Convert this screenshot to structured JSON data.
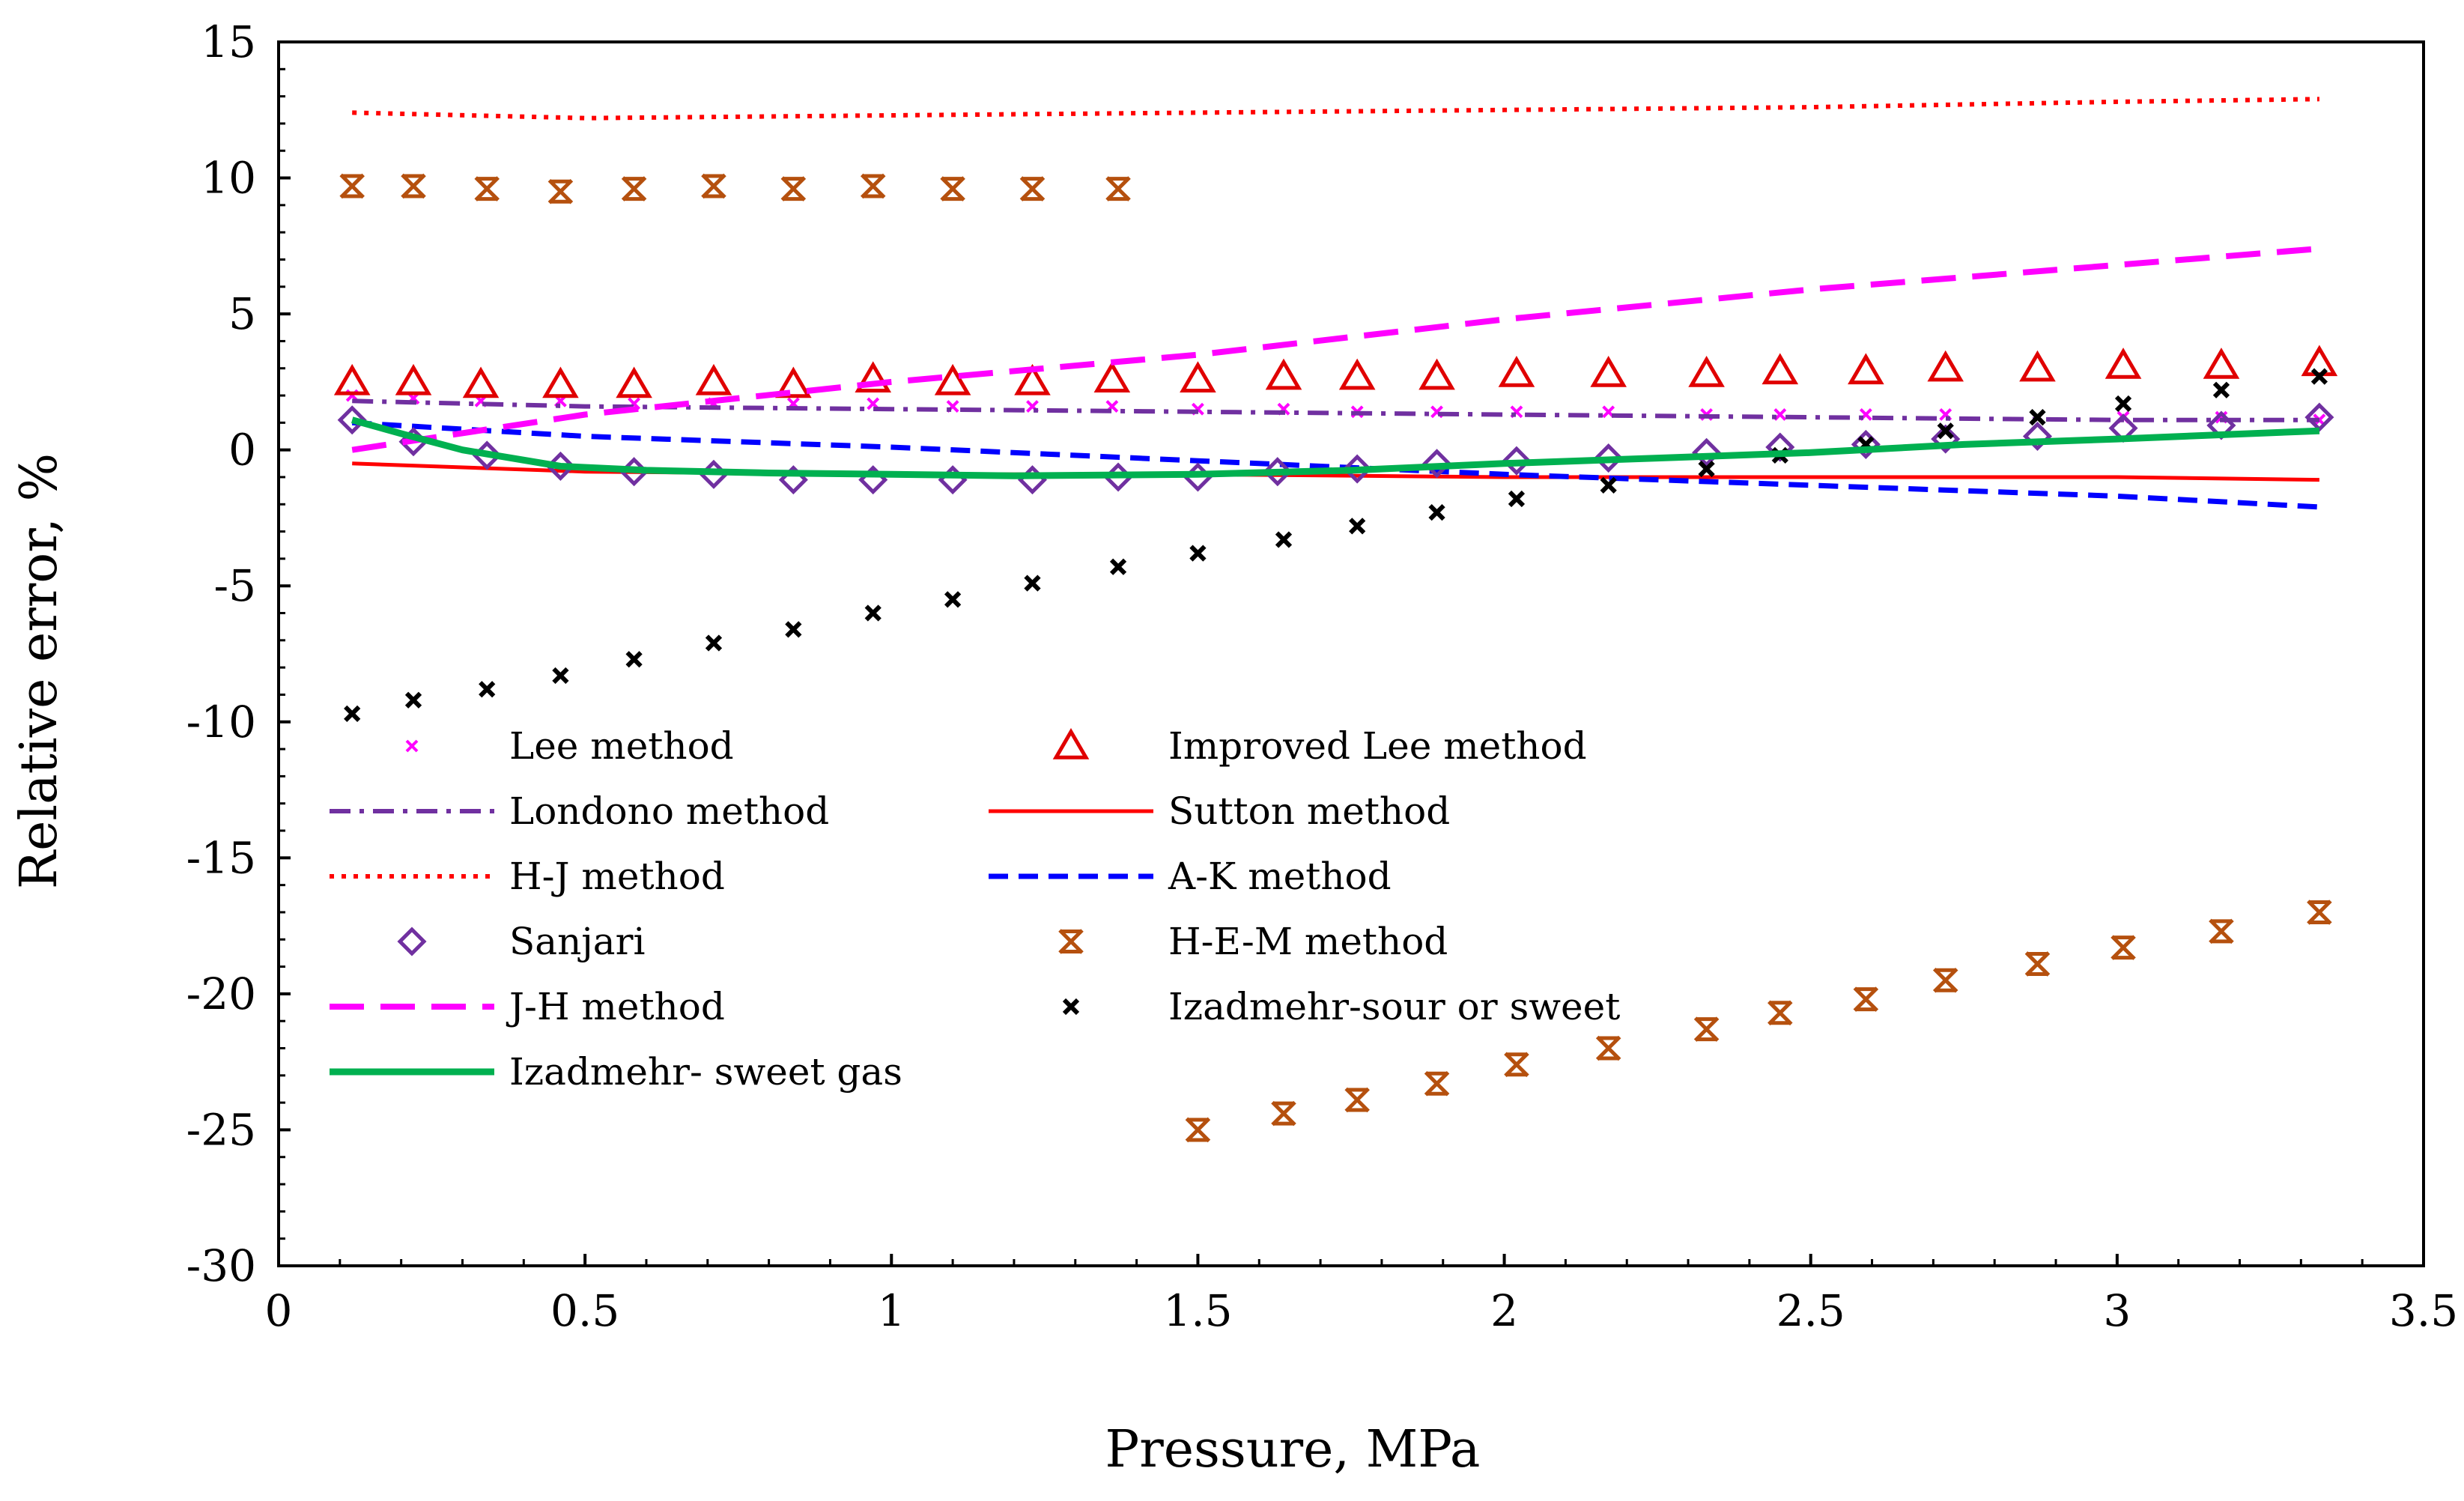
{
  "chart_data": {
    "type": "line",
    "title": "",
    "xlabel": "Pressure, MPa",
    "ylabel": "Relative error, %",
    "xlim": [
      0,
      3.5
    ],
    "ylim": [
      -30,
      15
    ],
    "xticks": [
      0,
      0.5,
      1,
      1.5,
      2,
      2.5,
      3,
      3.5
    ],
    "xtick_labels": [
      "0",
      "0.5",
      "1",
      "1.5",
      "2",
      "2.5",
      "3",
      "3.5"
    ],
    "yticks": [
      15,
      10,
      5,
      0,
      -5,
      -10,
      -15,
      -20,
      -25,
      -30
    ],
    "ytick_labels": [
      "15",
      "10",
      "5",
      "0",
      "-5",
      "-10",
      "-15",
      "-20",
      "-25",
      "-30"
    ],
    "grid": false,
    "legend_position": "lower-left, two columns",
    "series": [
      {
        "key": "lee",
        "name": "Lee method",
        "style": "marker",
        "marker": "x",
        "color": "#ff00ff",
        "x": [
          0.12,
          0.22,
          0.33,
          0.46,
          0.58,
          0.71,
          0.84,
          0.97,
          1.1,
          1.23,
          1.36,
          1.5,
          1.64,
          1.76,
          1.89,
          2.02,
          2.17,
          2.33,
          2.45,
          2.59,
          2.72,
          2.87,
          3.01,
          3.17,
          3.33
        ],
        "y": [
          2.0,
          1.9,
          1.8,
          1.8,
          1.7,
          1.7,
          1.7,
          1.7,
          1.6,
          1.6,
          1.6,
          1.5,
          1.5,
          1.4,
          1.4,
          1.4,
          1.4,
          1.3,
          1.3,
          1.3,
          1.3,
          1.2,
          1.2,
          1.2,
          1.1
        ]
      },
      {
        "key": "improved_lee",
        "name": "Improved Lee method",
        "style": "marker",
        "marker": "triangle",
        "color": "#e00000",
        "x": [
          0.12,
          0.22,
          0.33,
          0.46,
          0.58,
          0.71,
          0.84,
          0.97,
          1.1,
          1.23,
          1.36,
          1.5,
          1.64,
          1.76,
          1.89,
          2.02,
          2.17,
          2.33,
          2.45,
          2.59,
          2.72,
          2.87,
          3.01,
          3.17,
          3.33
        ],
        "y": [
          2.5,
          2.5,
          2.4,
          2.4,
          2.4,
          2.5,
          2.4,
          2.6,
          2.5,
          2.5,
          2.6,
          2.6,
          2.7,
          2.7,
          2.7,
          2.8,
          2.8,
          2.8,
          2.9,
          2.9,
          3.0,
          3.0,
          3.1,
          3.1,
          3.2
        ]
      },
      {
        "key": "londono",
        "name": "Londono method",
        "style": "dashdot",
        "color": "#7030a0",
        "x": [
          0.12,
          0.5,
          1.0,
          1.5,
          2.0,
          2.5,
          3.0,
          3.33
        ],
        "y": [
          1.8,
          1.6,
          1.5,
          1.4,
          1.3,
          1.2,
          1.1,
          1.1
        ]
      },
      {
        "key": "sutton",
        "name": "Sutton method",
        "style": "solid",
        "color": "#ff0000",
        "x": [
          0.12,
          0.5,
          1.0,
          1.5,
          2.0,
          2.5,
          3.0,
          3.33
        ],
        "y": [
          -0.5,
          -0.8,
          -0.9,
          -0.9,
          -1.0,
          -1.0,
          -1.0,
          -1.1
        ]
      },
      {
        "key": "hj",
        "name": "H-J method",
        "style": "dotted",
        "color": "#ff0000",
        "x": [
          0.12,
          0.5,
          1.0,
          1.5,
          2.0,
          2.5,
          3.0,
          3.33
        ],
        "y": [
          12.4,
          12.2,
          12.3,
          12.4,
          12.5,
          12.6,
          12.8,
          12.9
        ]
      },
      {
        "key": "ak",
        "name": "A-K method",
        "style": "dashed",
        "color": "#0000ff",
        "x": [
          0.12,
          0.5,
          1.0,
          1.5,
          2.0,
          2.5,
          3.0,
          3.33
        ],
        "y": [
          1.0,
          0.5,
          0.1,
          -0.4,
          -0.9,
          -1.3,
          -1.7,
          -2.1
        ]
      },
      {
        "key": "sanjari",
        "name": "Sanjari",
        "style": "marker",
        "marker": "diamond",
        "color": "#7030a0",
        "x": [
          0.12,
          0.22,
          0.34,
          0.46,
          0.58,
          0.71,
          0.84,
          0.97,
          1.1,
          1.23,
          1.37,
          1.5,
          1.63,
          1.76,
          1.89,
          2.02,
          2.17,
          2.33,
          2.45,
          2.59,
          2.72,
          2.87,
          3.01,
          3.17,
          3.33
        ],
        "y": [
          1.1,
          0.3,
          -0.2,
          -0.6,
          -0.8,
          -0.9,
          -1.1,
          -1.1,
          -1.1,
          -1.1,
          -1.0,
          -1.0,
          -0.8,
          -0.7,
          -0.5,
          -0.4,
          -0.3,
          -0.1,
          0.1,
          0.2,
          0.4,
          0.5,
          0.8,
          0.9,
          1.2
        ]
      },
      {
        "key": "hem",
        "name": "H-E-M method",
        "style": "marker",
        "marker": "asterisk",
        "color": "#b5500e",
        "x": [
          0.12,
          0.22,
          0.34,
          0.46,
          0.58,
          0.71,
          0.84,
          0.97,
          1.1,
          1.23,
          1.37,
          1.5,
          1.64,
          1.76,
          1.89,
          2.02,
          2.17,
          2.33,
          2.45,
          2.59,
          2.72,
          2.87,
          3.01,
          3.17,
          3.33
        ],
        "y": [
          9.7,
          9.7,
          9.6,
          9.5,
          9.6,
          9.7,
          9.6,
          9.7,
          9.6,
          9.6,
          9.6,
          -25.0,
          -24.4,
          -23.9,
          -23.3,
          -22.6,
          -22.0,
          -21.3,
          -20.7,
          -20.2,
          -19.5,
          -18.9,
          -18.3,
          -17.7,
          -17.0
        ]
      },
      {
        "key": "jh",
        "name": "J-H method",
        "style": "longdash",
        "color": "#ff00ff",
        "x": [
          0.12,
          0.5,
          1.0,
          1.5,
          2.0,
          2.5,
          3.0,
          3.33
        ],
        "y": [
          0.0,
          1.3,
          2.5,
          3.5,
          4.8,
          5.9,
          6.8,
          7.4
        ]
      },
      {
        "key": "iz_sour",
        "name": "Izadmehr-sour or sweet",
        "style": "marker",
        "marker": "smallx",
        "color": "#000000",
        "x": [
          0.12,
          0.22,
          0.34,
          0.46,
          0.58,
          0.71,
          0.84,
          0.97,
          1.1,
          1.23,
          1.37,
          1.5,
          1.64,
          1.76,
          1.89,
          2.02,
          2.17,
          2.33,
          2.45,
          2.59,
          2.72,
          2.87,
          3.01,
          3.17,
          3.33
        ],
        "y": [
          -9.7,
          -9.2,
          -8.8,
          -8.3,
          -7.7,
          -7.1,
          -6.6,
          -6.0,
          -5.5,
          -4.9,
          -4.3,
          -3.8,
          -3.3,
          -2.8,
          -2.3,
          -1.8,
          -1.3,
          -0.7,
          -0.2,
          0.2,
          0.7,
          1.2,
          1.7,
          2.2,
          2.7
        ]
      },
      {
        "key": "iz_sweet",
        "name": "Izadmehr- sweet gas",
        "style": "solid-thick",
        "color": "#00b050",
        "x": [
          0.12,
          0.2,
          0.3,
          0.46,
          0.6,
          0.8,
          1.0,
          1.2,
          1.5,
          1.75,
          2.0,
          2.25,
          2.5,
          2.75,
          3.0,
          3.33
        ],
        "y": [
          1.1,
          0.6,
          0.0,
          -0.6,
          -0.75,
          -0.85,
          -0.9,
          -0.95,
          -0.9,
          -0.75,
          -0.5,
          -0.3,
          -0.1,
          0.2,
          0.4,
          0.7
        ]
      }
    ],
    "legend": [
      {
        "key": "lee",
        "label": "Lee method",
        "col": 0,
        "row": 0
      },
      {
        "key": "improved_lee",
        "label": "Improved Lee method",
        "col": 1,
        "row": 0
      },
      {
        "key": "londono",
        "label": "Londono method",
        "col": 0,
        "row": 1
      },
      {
        "key": "sutton",
        "label": "Sutton method",
        "col": 1,
        "row": 1
      },
      {
        "key": "hj",
        "label": "H-J method",
        "col": 0,
        "row": 2
      },
      {
        "key": "ak",
        "label": "A-K method",
        "col": 1,
        "row": 2
      },
      {
        "key": "sanjari",
        "label": "Sanjari",
        "col": 0,
        "row": 3
      },
      {
        "key": "hem",
        "label": "H-E-M method",
        "col": 1,
        "row": 3
      },
      {
        "key": "jh",
        "label": "J-H method",
        "col": 0,
        "row": 4
      },
      {
        "key": "iz_sour",
        "label": "Izadmehr-sour or sweet",
        "col": 1,
        "row": 4
      },
      {
        "key": "iz_sweet",
        "label": "Izadmehr- sweet gas",
        "col": 0,
        "row": 5
      }
    ]
  }
}
